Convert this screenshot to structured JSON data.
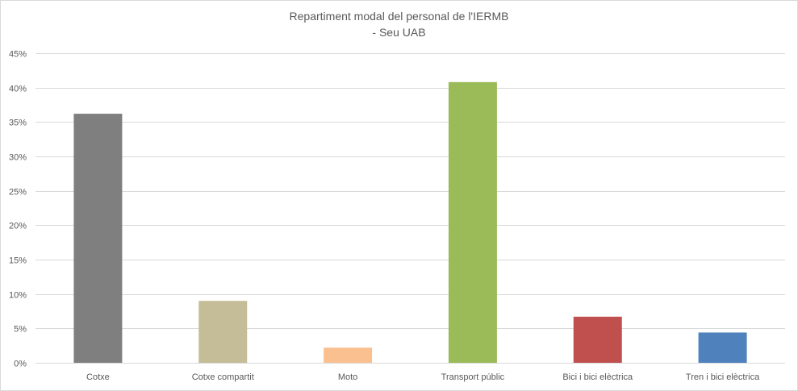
{
  "chart_data": {
    "type": "bar",
    "title_line1": "Repartiment modal del personal de l'IERMB",
    "title_line2": "- Seu UAB",
    "categories": [
      "Cotxe",
      "Cotxe compartit",
      "Moto",
      "Transport públic",
      "Bici i bici elèctrica",
      "Tren i bici elèctrica"
    ],
    "values": [
      36.2,
      9.0,
      2.2,
      40.8,
      6.7,
      4.4
    ],
    "colors": [
      "#7f7f7f",
      "#c4bd97",
      "#fac090",
      "#9bbb59",
      "#c0504d",
      "#4f81bd"
    ],
    "ylim": [
      0,
      45
    ],
    "yticks": [
      0,
      5,
      10,
      15,
      20,
      25,
      30,
      35,
      40,
      45
    ],
    "ytick_labels": [
      "0%",
      "5%",
      "10%",
      "15%",
      "20%",
      "25%",
      "30%",
      "35%",
      "40%",
      "45%"
    ],
    "grid": true,
    "legend": "none"
  }
}
